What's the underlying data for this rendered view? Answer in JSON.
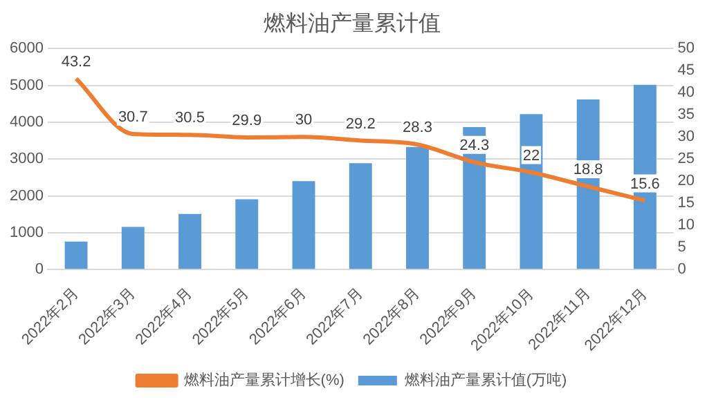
{
  "chart_data": {
    "type": "bar",
    "title": "燃料油产量累计值",
    "categories": [
      "2022年2月",
      "2022年3月",
      "2022年4月",
      "2022年5月",
      "2022年6月",
      "2022年7月",
      "2022年8月",
      "2022年9月",
      "2022年10月",
      "2022年11月",
      "2022年12月"
    ],
    "series": [
      {
        "name": "燃料油产量累计值(万吨)",
        "color": "#5b9bd5",
        "values": [
          760,
          1160,
          1510,
          1910,
          2400,
          2890,
          3330,
          3870,
          4220,
          4620,
          5020
        ]
      },
      {
        "name": "燃料油产量累计增长(%)",
        "type": "line",
        "axis": "y2",
        "color": "#ed7d31",
        "values": [
          43.2,
          30.7,
          30.5,
          29.9,
          30,
          29.2,
          28.3,
          24.3,
          22,
          18.8,
          15.6
        ],
        "value_labels": [
          "43.2",
          "30.7",
          "30.5",
          "29.9",
          "30",
          "29.2",
          "28.3",
          "24.3",
          "22",
          "18.8",
          "15.6"
        ]
      }
    ],
    "ylim": [
      0,
      6000
    ],
    "yticks": [
      0,
      1000,
      2000,
      3000,
      4000,
      5000,
      6000
    ],
    "y2lim": [
      0,
      50
    ],
    "y2ticks": [
      0,
      5,
      10,
      15,
      20,
      25,
      30,
      35,
      40,
      45,
      50
    ],
    "grid": "y",
    "legend": "bottom",
    "marker": "none"
  }
}
